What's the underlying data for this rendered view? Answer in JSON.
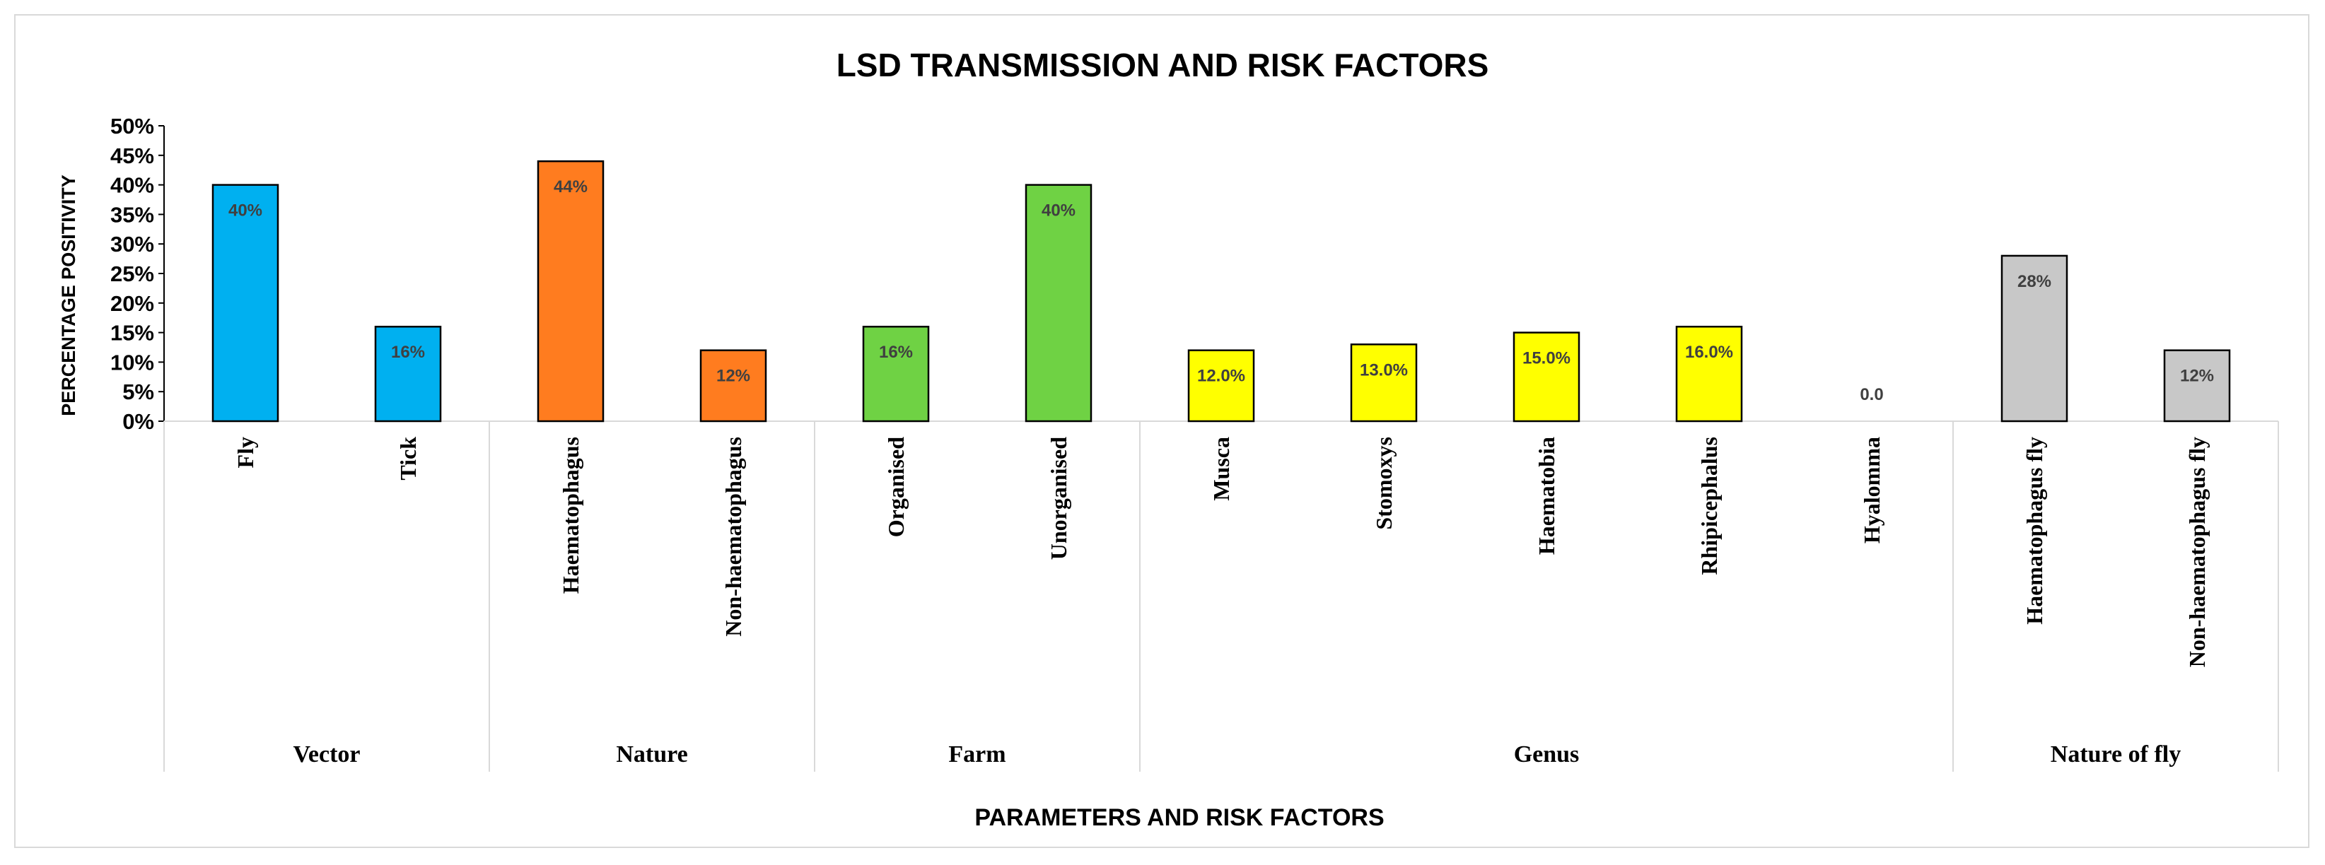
{
  "chart_data": {
    "type": "bar",
    "title": "LSD TRANSMISSION AND RISK FACTORS",
    "xlabel": "PARAMETERS AND RISK FACTORS",
    "ylabel": "PERCENTAGE POSITIVITY",
    "ylim": [
      0,
      50
    ],
    "yticks": [
      "0%",
      "5%",
      "10%",
      "15%",
      "20%",
      "25%",
      "30%",
      "35%",
      "40%",
      "45%",
      "50%"
    ],
    "ytick_values": [
      0,
      5,
      10,
      15,
      20,
      25,
      30,
      35,
      40,
      45,
      50
    ],
    "groups": [
      {
        "name": "Vector",
        "color": "#00b0f0",
        "bars": [
          {
            "category": "Fly",
            "value": 40,
            "label": "40%"
          },
          {
            "category": "Tick",
            "value": 16,
            "label": "16%"
          }
        ]
      },
      {
        "name": "Nature",
        "color": "#ff7c1f",
        "bars": [
          {
            "category": "Haematophagus",
            "value": 44,
            "label": "44%"
          },
          {
            "category": "Non-haematophagus",
            "value": 12,
            "label": "12%"
          }
        ]
      },
      {
        "name": "Farm",
        "color": "#6fd244",
        "bars": [
          {
            "category": "Organised",
            "value": 16,
            "label": "16%"
          },
          {
            "category": "Unorganised",
            "value": 40,
            "label": "40%"
          }
        ]
      },
      {
        "name": "Genus",
        "color": "#ffff00",
        "bars": [
          {
            "category": "Musca",
            "value": 12,
            "label": "12.0%"
          },
          {
            "category": "Stomoxys",
            "value": 13,
            "label": "13.0%"
          },
          {
            "category": "Haematobia",
            "value": 15,
            "label": "15.0%"
          },
          {
            "category": "Rhipicephalus",
            "value": 16,
            "label": "16.0%"
          },
          {
            "category": "Hyalomma",
            "value": 0,
            "label": "0.0"
          }
        ]
      },
      {
        "name": "Nature of fly",
        "color": "#c8c8c8",
        "bars": [
          {
            "category": "Haematophagus fly",
            "value": 28,
            "label": "28%"
          },
          {
            "category": "Non-haematophagus fly",
            "value": 12,
            "label": "12%"
          }
        ]
      }
    ],
    "grid": false,
    "legend": "none"
  }
}
